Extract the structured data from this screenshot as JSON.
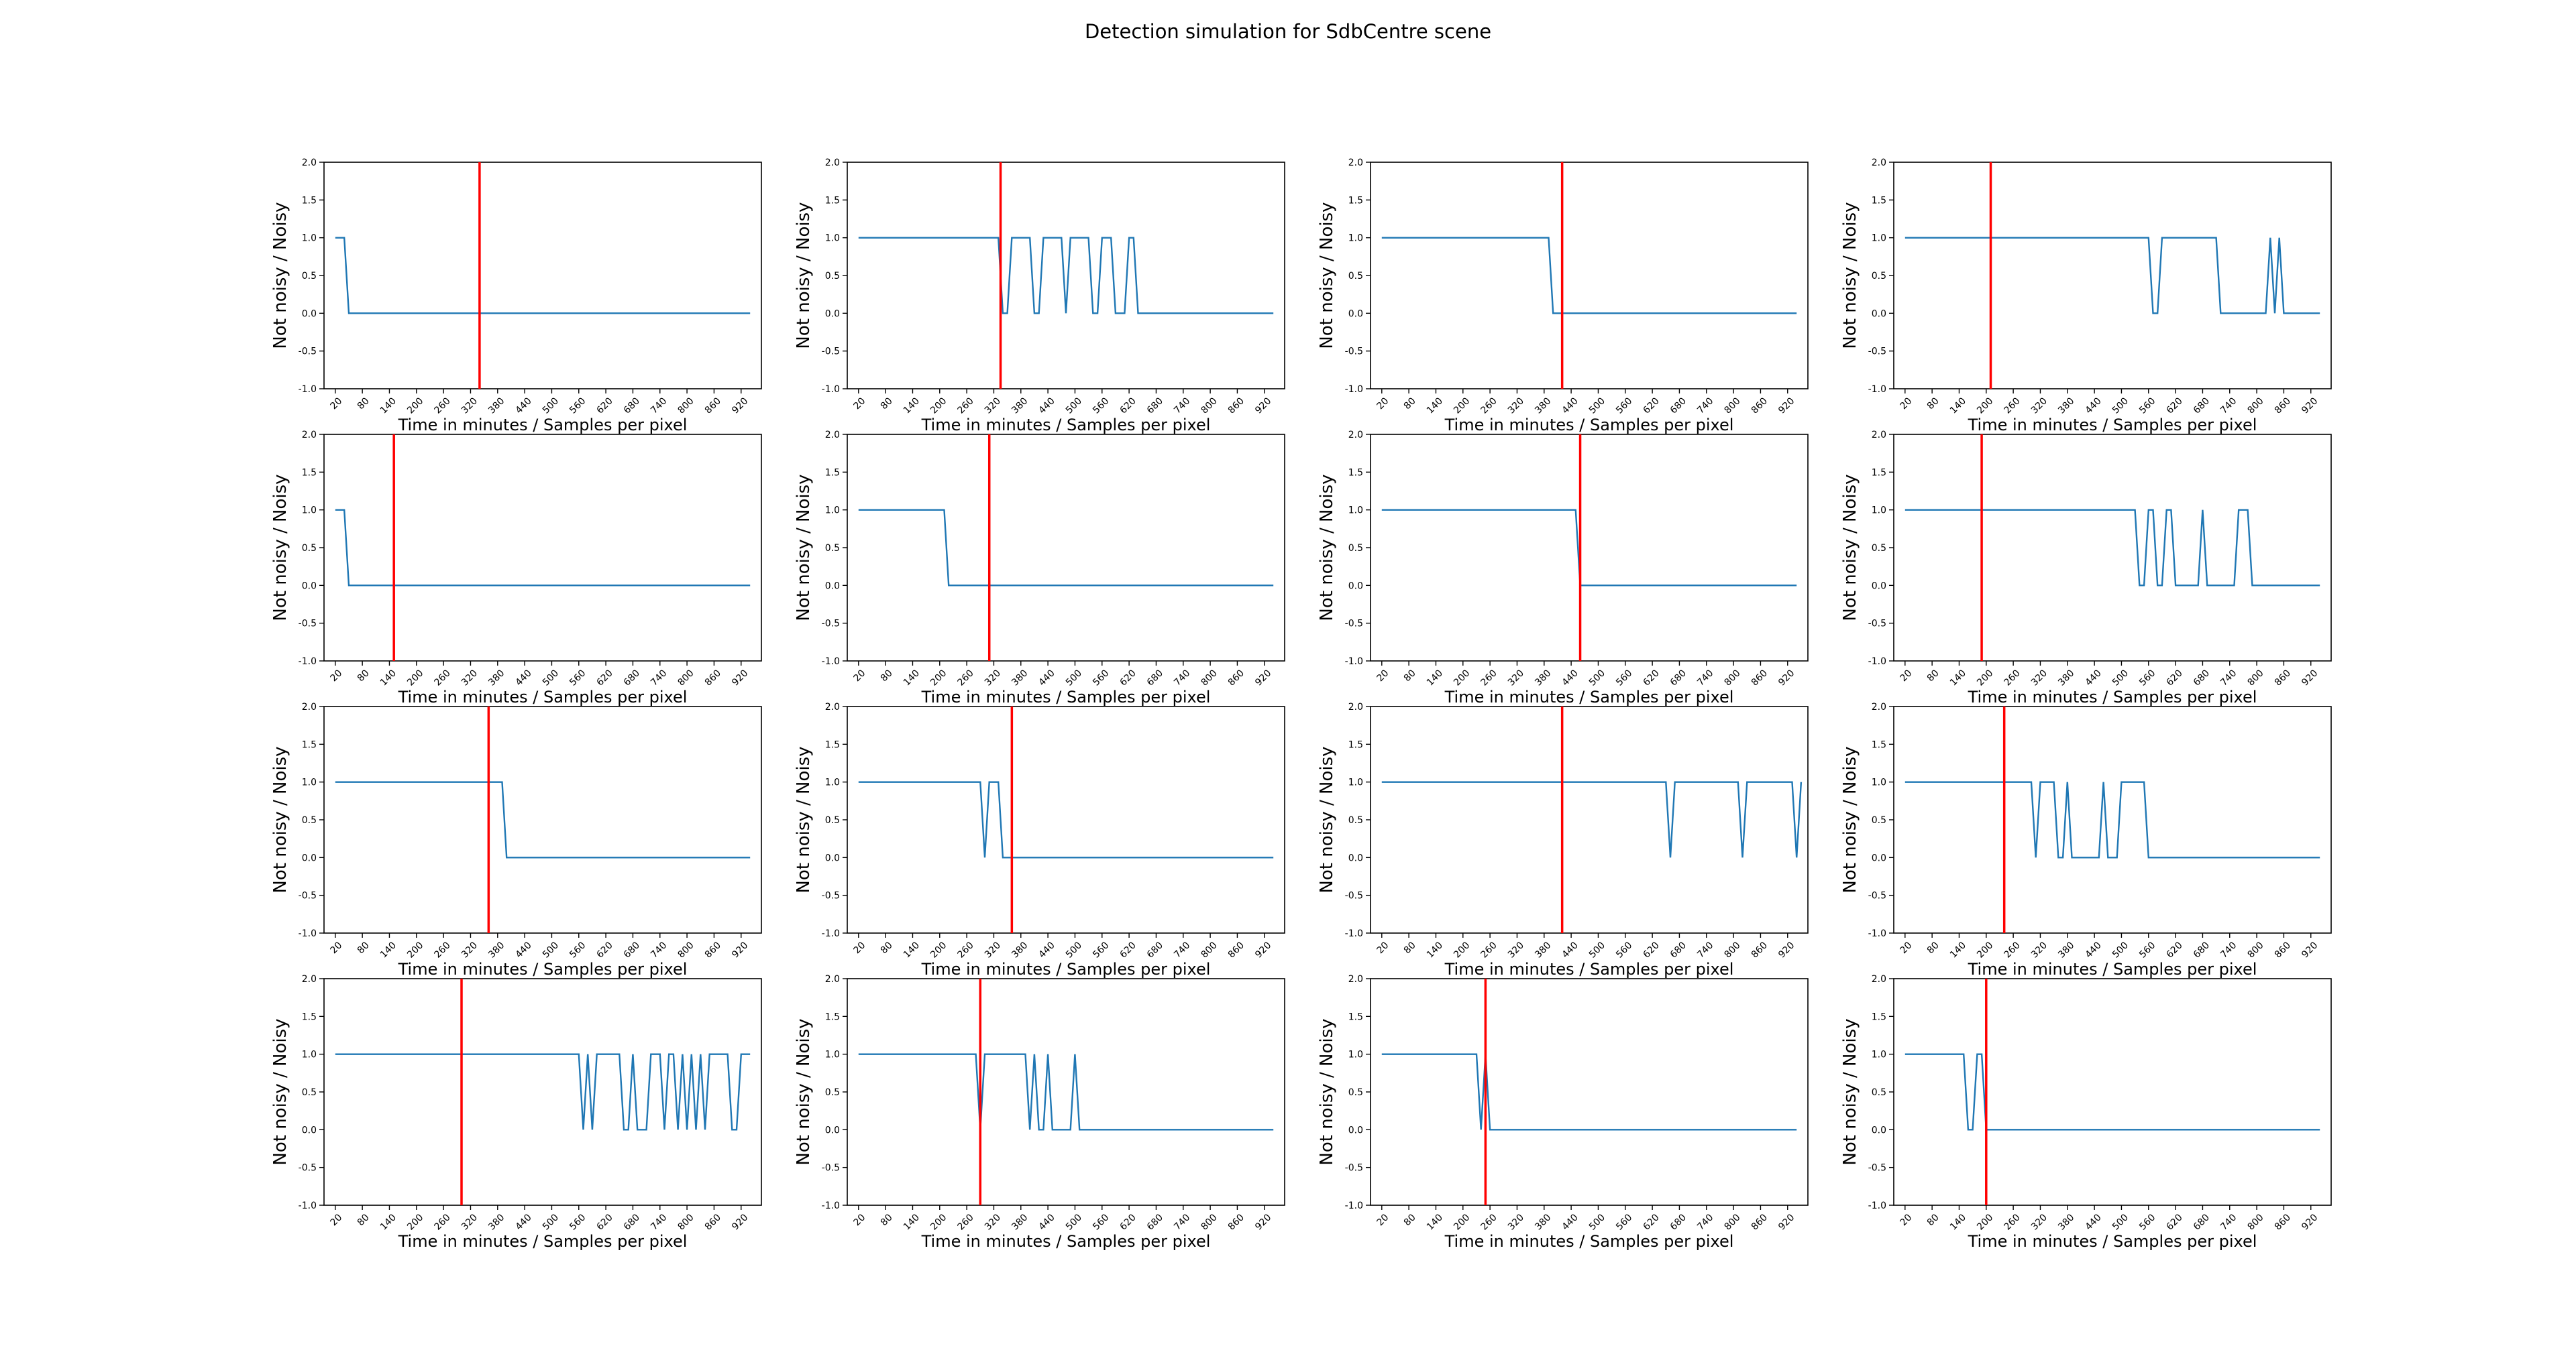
{
  "title": "Detection simulation for SdbCentre scene",
  "xlabel": "Time in minutes / Samples per pixel",
  "ylabel": "Not noisy / Noisy",
  "colors": {
    "signal": "#1f77b4",
    "threshold": "#ff0000",
    "axes": "#000000",
    "background": "#ffffff"
  },
  "chart_data": [
    {
      "type": "line",
      "ylim": [
        -1,
        2
      ],
      "xlim": [
        -5,
        965
      ],
      "xticks": [
        20,
        80,
        140,
        200,
        260,
        320,
        380,
        440,
        500,
        560,
        620,
        680,
        740,
        800,
        860,
        920
      ],
      "yticks": [
        -1.0,
        -0.5,
        0.0,
        0.5,
        1.0,
        1.5,
        2.0
      ],
      "grid": false,
      "threshold_x": 340,
      "x": [
        20,
        50
      ],
      "y": [
        1,
        0
      ],
      "steps": [
        [
          20,
          1
        ],
        [
          50,
          0
        ]
      ]
    },
    {
      "type": "line",
      "ylim": [
        -1,
        2
      ],
      "xlim": [
        -5,
        965
      ],
      "xticks": [
        20,
        80,
        140,
        200,
        260,
        320,
        380,
        440,
        500,
        560,
        620,
        680,
        740,
        800,
        860,
        920
      ],
      "yticks": [
        -1.0,
        -0.5,
        0.0,
        0.5,
        1.0,
        1.5,
        2.0
      ],
      "grid": false,
      "threshold_x": 335,
      "steps": [
        [
          20,
          1
        ],
        [
          340,
          0
        ],
        [
          360,
          1
        ],
        [
          410,
          0
        ],
        [
          430,
          1
        ],
        [
          480,
          0
        ],
        [
          490,
          1
        ],
        [
          540,
          0
        ],
        [
          560,
          1
        ],
        [
          590,
          0
        ],
        [
          620,
          1
        ],
        [
          640,
          0
        ]
      ]
    },
    {
      "type": "line",
      "ylim": [
        -1,
        2
      ],
      "xlim": [
        -5,
        965
      ],
      "xticks": [
        20,
        80,
        140,
        200,
        260,
        320,
        380,
        440,
        500,
        560,
        620,
        680,
        740,
        800,
        860,
        920
      ],
      "yticks": [
        -1.0,
        -0.5,
        0.0,
        0.5,
        1.0,
        1.5,
        2.0
      ],
      "grid": false,
      "threshold_x": 420,
      "steps": [
        [
          20,
          1
        ],
        [
          400,
          0
        ]
      ]
    },
    {
      "type": "line",
      "ylim": [
        -1,
        2
      ],
      "xlim": [
        -5,
        965
      ],
      "xticks": [
        20,
        80,
        140,
        200,
        260,
        320,
        380,
        440,
        500,
        560,
        620,
        680,
        740,
        800,
        860,
        920
      ],
      "yticks": [
        -1.0,
        -0.5,
        0.0,
        0.5,
        1.0,
        1.5,
        2.0
      ],
      "grid": false,
      "threshold_x": 210,
      "steps": [
        [
          20,
          1
        ],
        [
          570,
          0
        ],
        [
          590,
          1
        ],
        [
          720,
          0
        ],
        [
          830,
          1
        ],
        [
          840,
          0
        ],
        [
          850,
          1
        ],
        [
          860,
          0
        ]
      ]
    },
    {
      "type": "line",
      "ylim": [
        -1,
        2
      ],
      "xlim": [
        -5,
        965
      ],
      "xticks": [
        20,
        80,
        140,
        200,
        260,
        320,
        380,
        440,
        500,
        560,
        620,
        680,
        740,
        800,
        860,
        920
      ],
      "yticks": [
        -1.0,
        -0.5,
        0.0,
        0.5,
        1.0,
        1.5,
        2.0
      ],
      "grid": false,
      "threshold_x": 150,
      "steps": [
        [
          20,
          1
        ],
        [
          50,
          0
        ]
      ]
    },
    {
      "type": "line",
      "ylim": [
        -1,
        2
      ],
      "xlim": [
        -5,
        965
      ],
      "xticks": [
        20,
        80,
        140,
        200,
        260,
        320,
        380,
        440,
        500,
        560,
        620,
        680,
        740,
        800,
        860,
        920
      ],
      "yticks": [
        -1.0,
        -0.5,
        0.0,
        0.5,
        1.0,
        1.5,
        2.0
      ],
      "grid": false,
      "threshold_x": 310,
      "steps": [
        [
          20,
          1
        ],
        [
          220,
          0
        ]
      ]
    },
    {
      "type": "line",
      "ylim": [
        -1,
        2
      ],
      "xlim": [
        -5,
        965
      ],
      "xticks": [
        20,
        80,
        140,
        200,
        260,
        320,
        380,
        440,
        500,
        560,
        620,
        680,
        740,
        800,
        860,
        920
      ],
      "yticks": [
        -1.0,
        -0.5,
        0.0,
        0.5,
        1.0,
        1.5,
        2.0
      ],
      "grid": false,
      "threshold_x": 460,
      "steps": [
        [
          20,
          1
        ],
        [
          460,
          0
        ]
      ]
    },
    {
      "type": "line",
      "ylim": [
        -1,
        2
      ],
      "xlim": [
        -5,
        965
      ],
      "xticks": [
        20,
        80,
        140,
        200,
        260,
        320,
        380,
        440,
        500,
        560,
        620,
        680,
        740,
        800,
        860,
        920
      ],
      "yticks": [
        -1.0,
        -0.5,
        0.0,
        0.5,
        1.0,
        1.5,
        2.0
      ],
      "grid": false,
      "threshold_x": 190,
      "steps": [
        [
          20,
          1
        ],
        [
          540,
          0
        ],
        [
          560,
          1
        ],
        [
          580,
          0
        ],
        [
          600,
          1
        ],
        [
          620,
          0
        ],
        [
          680,
          1
        ],
        [
          690,
          0
        ],
        [
          760,
          1
        ],
        [
          790,
          0
        ]
      ]
    },
    {
      "type": "line",
      "ylim": [
        -1,
        2
      ],
      "xlim": [
        -5,
        965
      ],
      "xticks": [
        20,
        80,
        140,
        200,
        260,
        320,
        380,
        440,
        500,
        560,
        620,
        680,
        740,
        800,
        860,
        920
      ],
      "yticks": [
        -1.0,
        -0.5,
        0.0,
        0.5,
        1.0,
        1.5,
        2.0
      ],
      "grid": false,
      "threshold_x": 360,
      "steps": [
        [
          20,
          1
        ],
        [
          400,
          0
        ]
      ]
    },
    {
      "type": "line",
      "ylim": [
        -1,
        2
      ],
      "xlim": [
        -5,
        965
      ],
      "xticks": [
        20,
        80,
        140,
        200,
        260,
        320,
        380,
        440,
        500,
        560,
        620,
        680,
        740,
        800,
        860,
        920
      ],
      "yticks": [
        -1.0,
        -0.5,
        0.0,
        0.5,
        1.0,
        1.5,
        2.0
      ],
      "grid": false,
      "threshold_x": 360,
      "steps": [
        [
          20,
          1
        ],
        [
          300,
          0
        ],
        [
          310,
          1
        ],
        [
          340,
          0
        ]
      ]
    },
    {
      "type": "line",
      "ylim": [
        -1,
        2
      ],
      "xlim": [
        -5,
        965
      ],
      "xticks": [
        20,
        80,
        140,
        200,
        260,
        320,
        380,
        440,
        500,
        560,
        620,
        680,
        740,
        800,
        860,
        920
      ],
      "yticks": [
        -1.0,
        -0.5,
        0.0,
        0.5,
        1.0,
        1.5,
        2.0
      ],
      "grid": false,
      "threshold_x": 420,
      "steps": [
        [
          20,
          1
        ],
        [
          660,
          0
        ],
        [
          670,
          1
        ],
        [
          820,
          0
        ],
        [
          830,
          1
        ],
        [
          940,
          0
        ],
        [
          950,
          1
        ]
      ]
    },
    {
      "type": "line",
      "ylim": [
        -1,
        2
      ],
      "xlim": [
        -5,
        965
      ],
      "xticks": [
        20,
        80,
        140,
        200,
        260,
        320,
        380,
        440,
        500,
        560,
        620,
        680,
        740,
        800,
        860,
        920
      ],
      "yticks": [
        -1.0,
        -0.5,
        0.0,
        0.5,
        1.0,
        1.5,
        2.0
      ],
      "grid": false,
      "threshold_x": 240,
      "steps": [
        [
          20,
          1
        ],
        [
          310,
          0
        ],
        [
          320,
          1
        ],
        [
          360,
          0
        ],
        [
          380,
          1
        ],
        [
          390,
          0
        ],
        [
          460,
          1
        ],
        [
          470,
          0
        ],
        [
          500,
          1
        ],
        [
          560,
          0
        ]
      ]
    },
    {
      "type": "line",
      "ylim": [
        -1,
        2
      ],
      "xlim": [
        -5,
        965
      ],
      "xticks": [
        20,
        80,
        140,
        200,
        260,
        320,
        380,
        440,
        500,
        560,
        620,
        680,
        740,
        800,
        860,
        920
      ],
      "yticks": [
        -1.0,
        -0.5,
        0.0,
        0.5,
        1.0,
        1.5,
        2.0
      ],
      "grid": false,
      "threshold_x": 300,
      "steps": [
        [
          20,
          1
        ],
        [
          570,
          0
        ],
        [
          580,
          1
        ],
        [
          590,
          0
        ],
        [
          600,
          1
        ],
        [
          660,
          0
        ],
        [
          680,
          1
        ],
        [
          690,
          0
        ],
        [
          720,
          1
        ],
        [
          750,
          0
        ],
        [
          760,
          1
        ],
        [
          780,
          0
        ],
        [
          790,
          1
        ],
        [
          800,
          0
        ],
        [
          810,
          1
        ],
        [
          820,
          0
        ],
        [
          830,
          1
        ],
        [
          840,
          0
        ],
        [
          850,
          1
        ],
        [
          900,
          0
        ],
        [
          920,
          1
        ]
      ]
    },
    {
      "type": "line",
      "ylim": [
        -1,
        2
      ],
      "xlim": [
        -5,
        965
      ],
      "xticks": [
        20,
        80,
        140,
        200,
        260,
        320,
        380,
        440,
        500,
        560,
        620,
        680,
        740,
        800,
        860,
        920
      ],
      "yticks": [
        -1.0,
        -0.5,
        0.0,
        0.5,
        1.0,
        1.5,
        2.0
      ],
      "grid": false,
      "threshold_x": 290,
      "steps": [
        [
          20,
          1
        ],
        [
          290,
          0
        ],
        [
          300,
          1
        ],
        [
          400,
          0
        ],
        [
          410,
          1
        ],
        [
          420,
          0
        ],
        [
          440,
          1
        ],
        [
          450,
          0
        ],
        [
          500,
          1
        ],
        [
          510,
          0
        ]
      ]
    },
    {
      "type": "line",
      "ylim": [
        -1,
        2
      ],
      "xlim": [
        -5,
        965
      ],
      "xticks": [
        20,
        80,
        140,
        200,
        260,
        320,
        380,
        440,
        500,
        560,
        620,
        680,
        740,
        800,
        860,
        920
      ],
      "yticks": [
        -1.0,
        -0.5,
        0.0,
        0.5,
        1.0,
        1.5,
        2.0
      ],
      "grid": false,
      "threshold_x": 250,
      "steps": [
        [
          20,
          1
        ],
        [
          240,
          0
        ],
        [
          250,
          1
        ],
        [
          260,
          0
        ]
      ]
    },
    {
      "type": "line",
      "ylim": [
        -1,
        2
      ],
      "xlim": [
        -5,
        965
      ],
      "xticks": [
        20,
        80,
        140,
        200,
        260,
        320,
        380,
        440,
        500,
        560,
        620,
        680,
        740,
        800,
        860,
        920
      ],
      "yticks": [
        -1.0,
        -0.5,
        0.0,
        0.5,
        1.0,
        1.5,
        2.0
      ],
      "grid": false,
      "threshold_x": 200,
      "steps": [
        [
          20,
          1
        ],
        [
          160,
          0
        ],
        [
          180,
          1
        ],
        [
          200,
          0
        ]
      ]
    }
  ]
}
